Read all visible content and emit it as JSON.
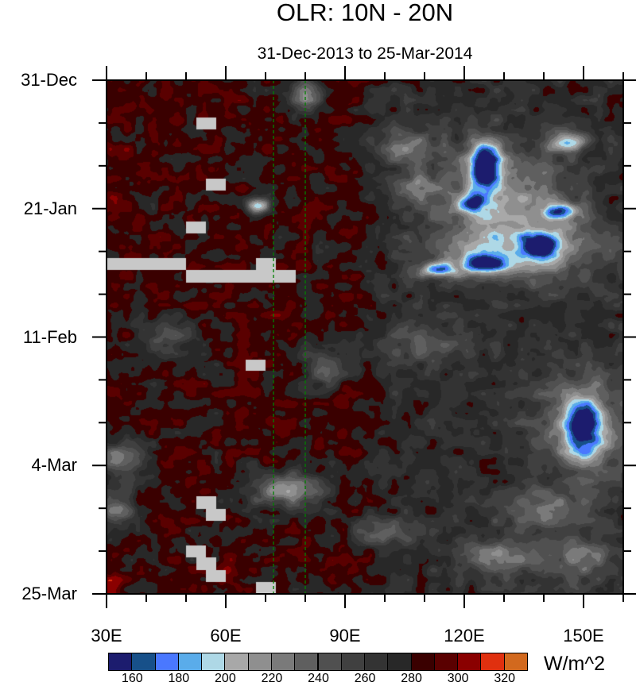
{
  "chart_data": {
    "type": "heatmap",
    "title": "OLR: 10N - 20N",
    "subtitle": "31-Dec-2013 to 25-Mar-2014",
    "xlabel": "",
    "ylabel": "",
    "xlim": [
      30,
      160
    ],
    "x_ticks": [
      {
        "value": 30,
        "label": "30E"
      },
      {
        "value": 60,
        "label": "60E"
      },
      {
        "value": 90,
        "label": "90E"
      },
      {
        "value": 120,
        "label": "120E"
      },
      {
        "value": 150,
        "label": "150E"
      }
    ],
    "ylim_days": [
      0,
      84
    ],
    "y_ticks": [
      {
        "day": 0,
        "label": "31-Dec"
      },
      {
        "day": 21,
        "label": "21-Jan"
      },
      {
        "day": 42,
        "label": "11-Feb"
      },
      {
        "day": 63,
        "label": "4-Mar"
      },
      {
        "day": 84,
        "label": "25-Mar"
      }
    ],
    "reference_lines_lon": [
      72,
      80
    ],
    "reference_line_color": "#008000",
    "colorbar": {
      "units": "W/m^2",
      "levels": [
        160,
        170,
        180,
        190,
        200,
        210,
        220,
        230,
        240,
        250,
        260,
        270,
        280,
        290,
        300,
        310,
        320
      ],
      "labels": [
        "160",
        "180",
        "200",
        "220",
        "240",
        "260",
        "280",
        "300",
        "320"
      ],
      "colors": [
        "#1c1c6e",
        "#175089",
        "#4a78ff",
        "#5aacea",
        "#aed8e6",
        "#a8a8a8",
        "#8f8f8f",
        "#7a7a7a",
        "#5f5f5f",
        "#505050",
        "#404040",
        "#333333",
        "#282828",
        "#3a0000",
        "#5a0000",
        "#8a0000",
        "#e0300f",
        "#d2691e"
      ]
    },
    "missing_color": "#c8c8c8",
    "missing_data_cells": [
      [
        52.5,
        57.5,
        6,
        8
      ],
      [
        55,
        60,
        16,
        18
      ],
      [
        50,
        55,
        23,
        25
      ],
      [
        30,
        50,
        29,
        31
      ],
      [
        67.5,
        72.5,
        29,
        31
      ],
      [
        50,
        77.5,
        31,
        33
      ],
      [
        65,
        70,
        45.7,
        47.5
      ],
      [
        52.5,
        57.5,
        68,
        70
      ],
      [
        55,
        60,
        70,
        72
      ],
      [
        50,
        55,
        76,
        78
      ],
      [
        52.5,
        57.5,
        78,
        80
      ],
      [
        55,
        60,
        80,
        82
      ],
      [
        67.5,
        72.5,
        82,
        84
      ]
    ],
    "features": [
      {
        "lon": 125,
        "day": 14,
        "olr": 152,
        "rlon": 4,
        "rday": 4
      },
      {
        "lon": 146,
        "day": 10,
        "olr": 195,
        "rlon": 5,
        "rday": 1.5
      },
      {
        "lon": 139,
        "day": 27,
        "olr": 165,
        "rlon": 4,
        "rday": 1.8
      },
      {
        "lon": 125,
        "day": 30,
        "olr": 190,
        "rlon": 6,
        "rday": 1.5
      },
      {
        "lon": 113,
        "day": 31,
        "olr": 190,
        "rlon": 5,
        "rday": 1.2
      },
      {
        "lon": 122,
        "day": 20,
        "olr": 188,
        "rlon": 3,
        "rday": 1.5
      },
      {
        "lon": 144,
        "day": 21.5,
        "olr": 188,
        "rlon": 4,
        "rday": 1.3
      },
      {
        "lon": 130,
        "day": 20,
        "olr": 215,
        "rlon": 18,
        "rday": 9
      },
      {
        "lon": 135,
        "day": 28,
        "olr": 225,
        "rlon": 22,
        "rday": 5
      },
      {
        "lon": 68,
        "day": 20.5,
        "olr": 190,
        "rlon": 3,
        "rday": 1.2
      },
      {
        "lon": 150,
        "day": 57,
        "olr": 172,
        "rlon": 5,
        "rday": 5
      },
      {
        "lon": 150,
        "day": 56,
        "olr": 230,
        "rlon": 14,
        "rday": 9
      },
      {
        "lon": 80,
        "day": 2.5,
        "olr": 222,
        "rlon": 4,
        "rday": 3
      },
      {
        "lon": 105,
        "day": 11,
        "olr": 230,
        "rlon": 8,
        "rday": 3
      },
      {
        "lon": 107,
        "day": 17.5,
        "olr": 230,
        "rlon": 5,
        "rday": 2
      },
      {
        "lon": 75,
        "day": 67,
        "olr": 220,
        "rlon": 9,
        "rday": 3
      },
      {
        "lon": 34,
        "day": 62,
        "olr": 225,
        "rlon": 6,
        "rday": 3
      },
      {
        "lon": 32,
        "day": 70,
        "olr": 228,
        "rlon": 5,
        "rday": 3
      },
      {
        "lon": 128,
        "day": 78,
        "olr": 220,
        "rlon": 8,
        "rday": 3
      },
      {
        "lon": 140,
        "day": 70,
        "olr": 230,
        "rlon": 12,
        "rday": 3
      },
      {
        "lon": 100,
        "day": 74,
        "olr": 235,
        "rlon": 8,
        "rday": 2
      },
      {
        "lon": 148,
        "day": 78,
        "olr": 232,
        "rlon": 12,
        "rday": 4
      },
      {
        "lon": 110,
        "day": 43,
        "olr": 238,
        "rlon": 12,
        "rday": 3
      },
      {
        "lon": 45,
        "day": 42,
        "olr": 240,
        "rlon": 6,
        "rday": 3
      },
      {
        "lon": 85,
        "day": 47,
        "olr": 245,
        "rlon": 6,
        "rday": 4
      },
      {
        "lon": 75,
        "day": 36,
        "olr": 296,
        "rlon": 4,
        "rday": 3
      },
      {
        "lon": 31,
        "day": 83,
        "olr": 305,
        "rlon": 3,
        "rday": 2
      },
      {
        "lon": 32,
        "day": 20,
        "olr": 293,
        "rlon": 3,
        "rday": 6
      },
      {
        "lon": 89,
        "day": 52,
        "olr": 294,
        "rlon": 3,
        "rday": 4
      },
      {
        "lon": 62,
        "day": 80,
        "olr": 293,
        "rlon": 6,
        "rday": 3
      }
    ]
  }
}
